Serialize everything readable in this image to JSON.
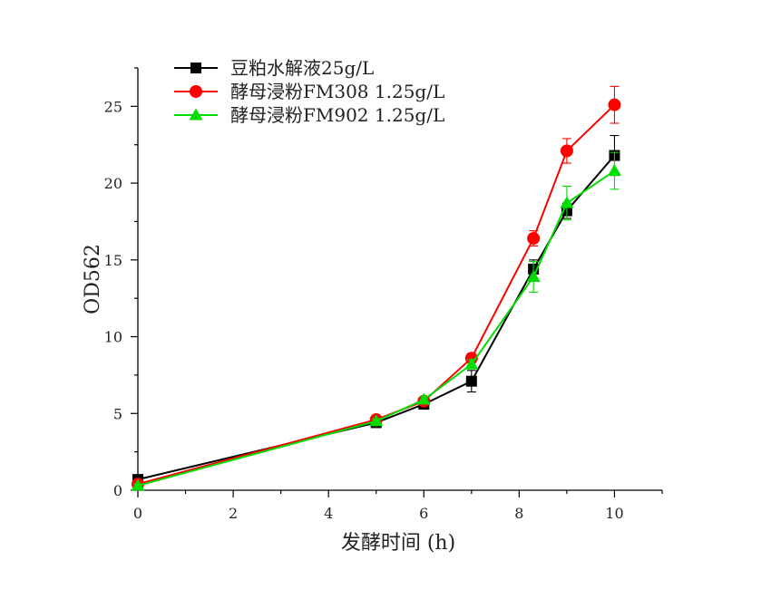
{
  "chart_data": {
    "type": "line",
    "title": "",
    "xlabel": "发酵时间 (h)",
    "ylabel": "OD562",
    "xlim": [
      0,
      11
    ],
    "ylim": [
      0,
      27.5
    ],
    "xticks": [
      0,
      2,
      4,
      6,
      8,
      10
    ],
    "yticks": [
      0,
      5,
      10,
      15,
      20,
      25
    ],
    "grid": false,
    "legend_position": "top-left",
    "series": [
      {
        "name": "豆粕水解液25g/L",
        "color": "#000000",
        "marker": "square",
        "x": [
          0,
          5,
          6,
          7,
          8.3,
          9,
          10
        ],
        "y": [
          0.7,
          4.4,
          5.6,
          7.1,
          14.4,
          18.2,
          21.8
        ],
        "err": [
          0.1,
          0.15,
          0.2,
          0.7,
          0.6,
          0.5,
          1.3
        ]
      },
      {
        "name": "酵母浸粉FM308 1.25g/L",
        "color": "#ff0000",
        "marker": "circle",
        "x": [
          0,
          5,
          6,
          7,
          8.3,
          9,
          10
        ],
        "y": [
          0.4,
          4.6,
          5.8,
          8.6,
          16.4,
          22.1,
          25.1
        ],
        "err": [
          0.1,
          0.15,
          0.2,
          0.3,
          0.5,
          0.8,
          1.2
        ]
      },
      {
        "name": "酵母浸粉FM902 1.25g/L",
        "color": "#00dd00",
        "marker": "triangle",
        "x": [
          0,
          5,
          6,
          7,
          8.3,
          9,
          10
        ],
        "y": [
          0.3,
          4.5,
          5.9,
          8.2,
          13.9,
          18.7,
          20.8
        ],
        "err": [
          0.1,
          0.15,
          0.2,
          0.3,
          1.0,
          1.1,
          1.2
        ]
      }
    ]
  }
}
